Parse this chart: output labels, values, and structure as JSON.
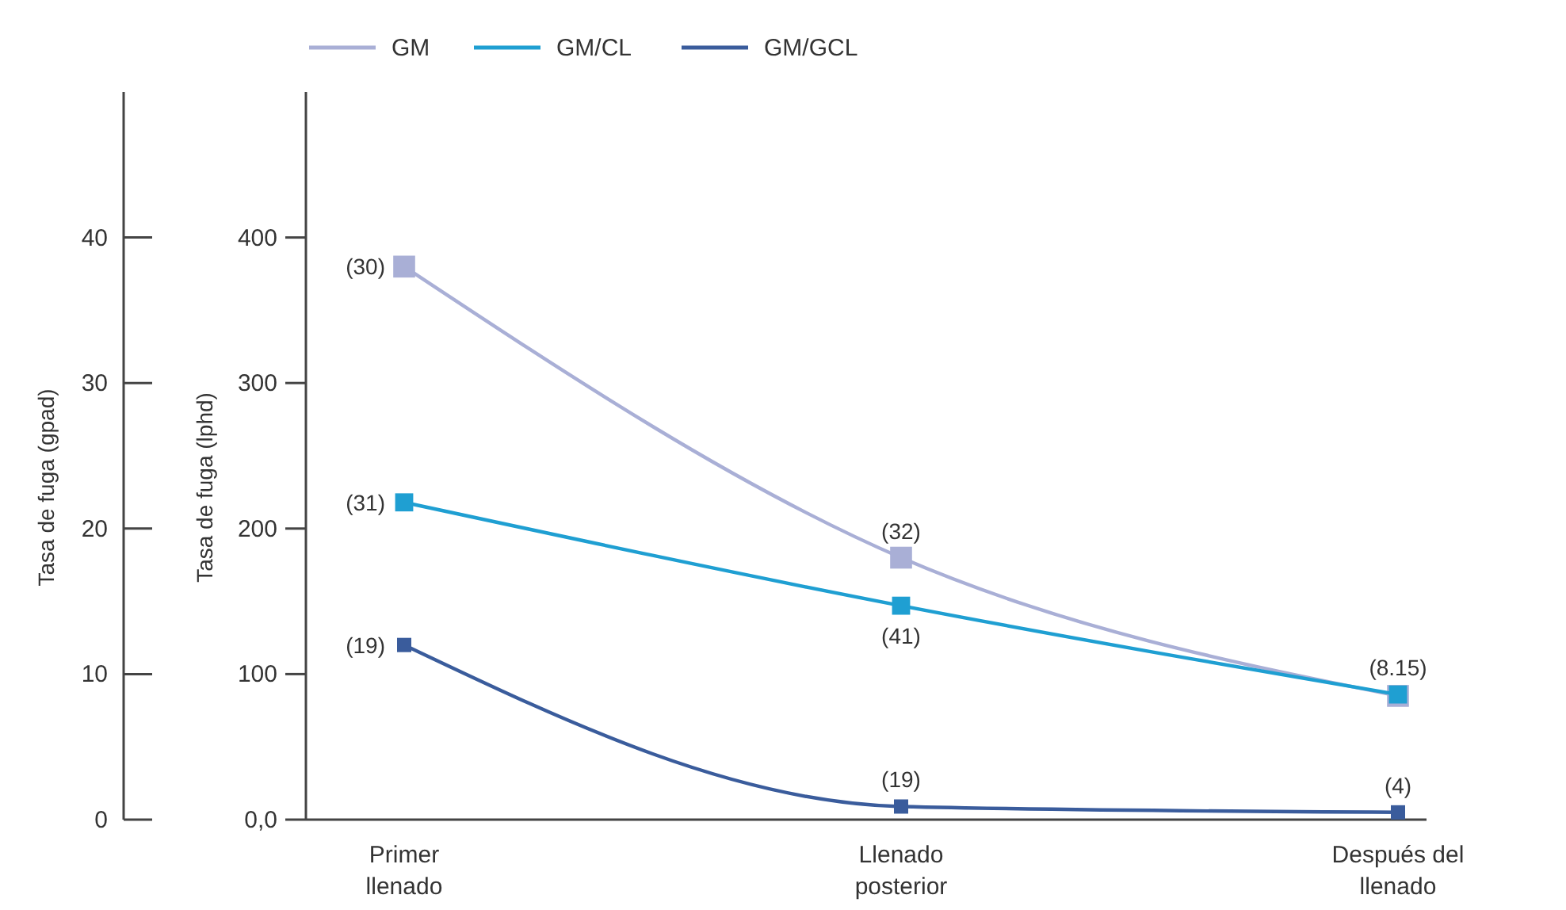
{
  "chart_data": {
    "type": "line",
    "categories": [
      "Primer llenado",
      "Llenado posterior",
      "Después del llenado"
    ],
    "series": [
      {
        "name": "GM",
        "color": "#a9afd6",
        "values": [
          380,
          180,
          85
        ]
      },
      {
        "name": "GM/CL",
        "color": "#1f9fd2",
        "values": [
          218,
          147,
          86
        ]
      },
      {
        "name": "GM/GCL",
        "color": "#3a5c9c",
        "values": [
          120,
          9,
          5
        ]
      }
    ],
    "ylabel": "Tasa de fuga (lphd)",
    "ylim": [
      0,
      500
    ],
    "yticks": [
      {
        "value": 0,
        "label": "0,0"
      },
      100,
      200,
      300,
      400
    ],
    "y2label": "Tasa de fuga (gpad)",
    "y2lim": [
      0,
      50
    ],
    "y2ticks": [
      0,
      10,
      20,
      30,
      40
    ],
    "annotations": [
      {
        "text": "(30)",
        "x": "Primer llenado",
        "y": 380
      },
      {
        "text": "(31)",
        "x": "Primer llenado",
        "y": 218
      },
      {
        "text": "(19)",
        "x": "Primer llenado",
        "y": 120
      },
      {
        "text": "(32)",
        "x": "Llenado posterior",
        "y": 180
      },
      {
        "text": "(41)",
        "x": "Llenado posterior",
        "y": 147
      },
      {
        "text": "(19)",
        "x": "Llenado posterior",
        "y": 9
      },
      {
        "text": "(8.15)",
        "x": "Después del llenado",
        "y": 86
      },
      {
        "text": "(4)",
        "x": "Después del llenado",
        "y": 5
      }
    ],
    "marker": "square",
    "legend": "top left",
    "grid": false
  }
}
